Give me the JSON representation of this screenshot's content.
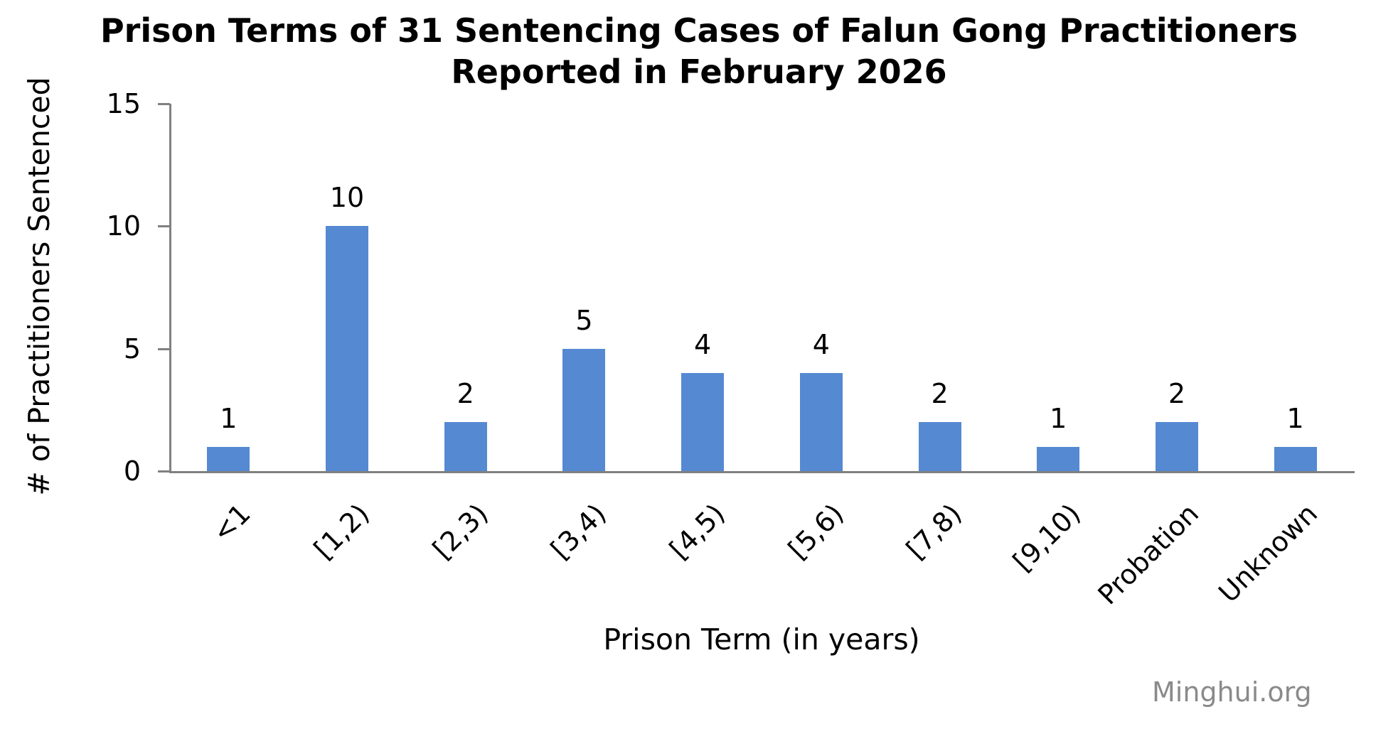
{
  "figure": {
    "title_line1": "Prison Terms of 31 Sentencing Cases of Falun Gong Practitioners",
    "title_line2": "Reported in February 2026",
    "watermark": "Minghui.org"
  },
  "chart_data": {
    "type": "bar",
    "title": "Prison Terms of 31 Sentencing Cases of Falun Gong Practitioners Reported in February 2026",
    "categories": [
      "<1",
      "[1,2)",
      "[2,3)",
      "[3,4)",
      "[4,5)",
      "[5,6)",
      "[7,8)",
      "[9,10)",
      "Probation",
      "Unknown"
    ],
    "values": [
      1,
      10,
      2,
      5,
      4,
      4,
      2,
      1,
      2,
      1
    ],
    "xlabel": "Prison Term (in years)",
    "ylabel": "# of Practitioners Sentenced",
    "ylim": [
      0,
      15
    ],
    "yticks": [
      0,
      5,
      10,
      15
    ],
    "x_tick_rotation_deg": 45,
    "value_labels_shown": true,
    "grid": false,
    "legend": "none",
    "bar_color": "#5589D2",
    "axis_color": "#808080",
    "text_color": "#000000",
    "watermark_color": "#8A8A8A",
    "background_color": "#FFFFFF"
  }
}
